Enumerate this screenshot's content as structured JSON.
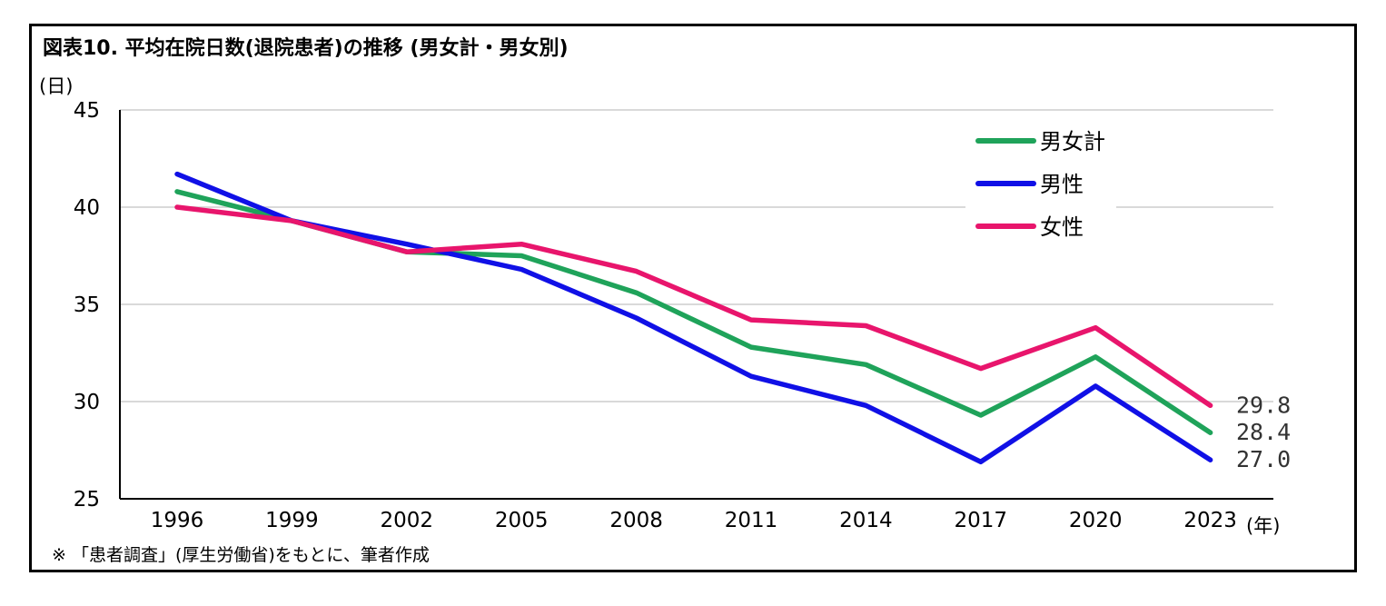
{
  "chart_data": {
    "type": "line",
    "title": "図表10. 平均在院日数(退院患者)の推移 (男女計・男女別)",
    "ylabel": "(日)",
    "xlabel": "(年)",
    "note": "※ 「患者調査」(厚生労働省)をもとに、筆者作成",
    "ylim": [
      25,
      45
    ],
    "yticks": [
      "25",
      "30",
      "35",
      "40",
      "45"
    ],
    "categories": [
      "1996",
      "1999",
      "2002",
      "2005",
      "2008",
      "2011",
      "2014",
      "2017",
      "2020",
      "2023"
    ],
    "grid": "horizontal",
    "legend_position": "top-right",
    "series": [
      {
        "name": "男女計",
        "color": "#1fa35a",
        "values": [
          40.8,
          39.3,
          37.7,
          37.5,
          35.6,
          32.8,
          31.9,
          29.3,
          32.3,
          28.4
        ],
        "end_label": "28.4"
      },
      {
        "name": "男性",
        "color": "#1010e6",
        "values": [
          41.7,
          39.3,
          38.1,
          36.8,
          34.3,
          31.3,
          29.8,
          26.9,
          30.8,
          27.0
        ],
        "end_label": "27.0"
      },
      {
        "name": "女性",
        "color": "#e8156c",
        "values": [
          40.0,
          39.3,
          37.7,
          38.1,
          36.7,
          34.2,
          33.9,
          31.7,
          33.8,
          29.8
        ],
        "end_label": "29.8"
      }
    ]
  }
}
